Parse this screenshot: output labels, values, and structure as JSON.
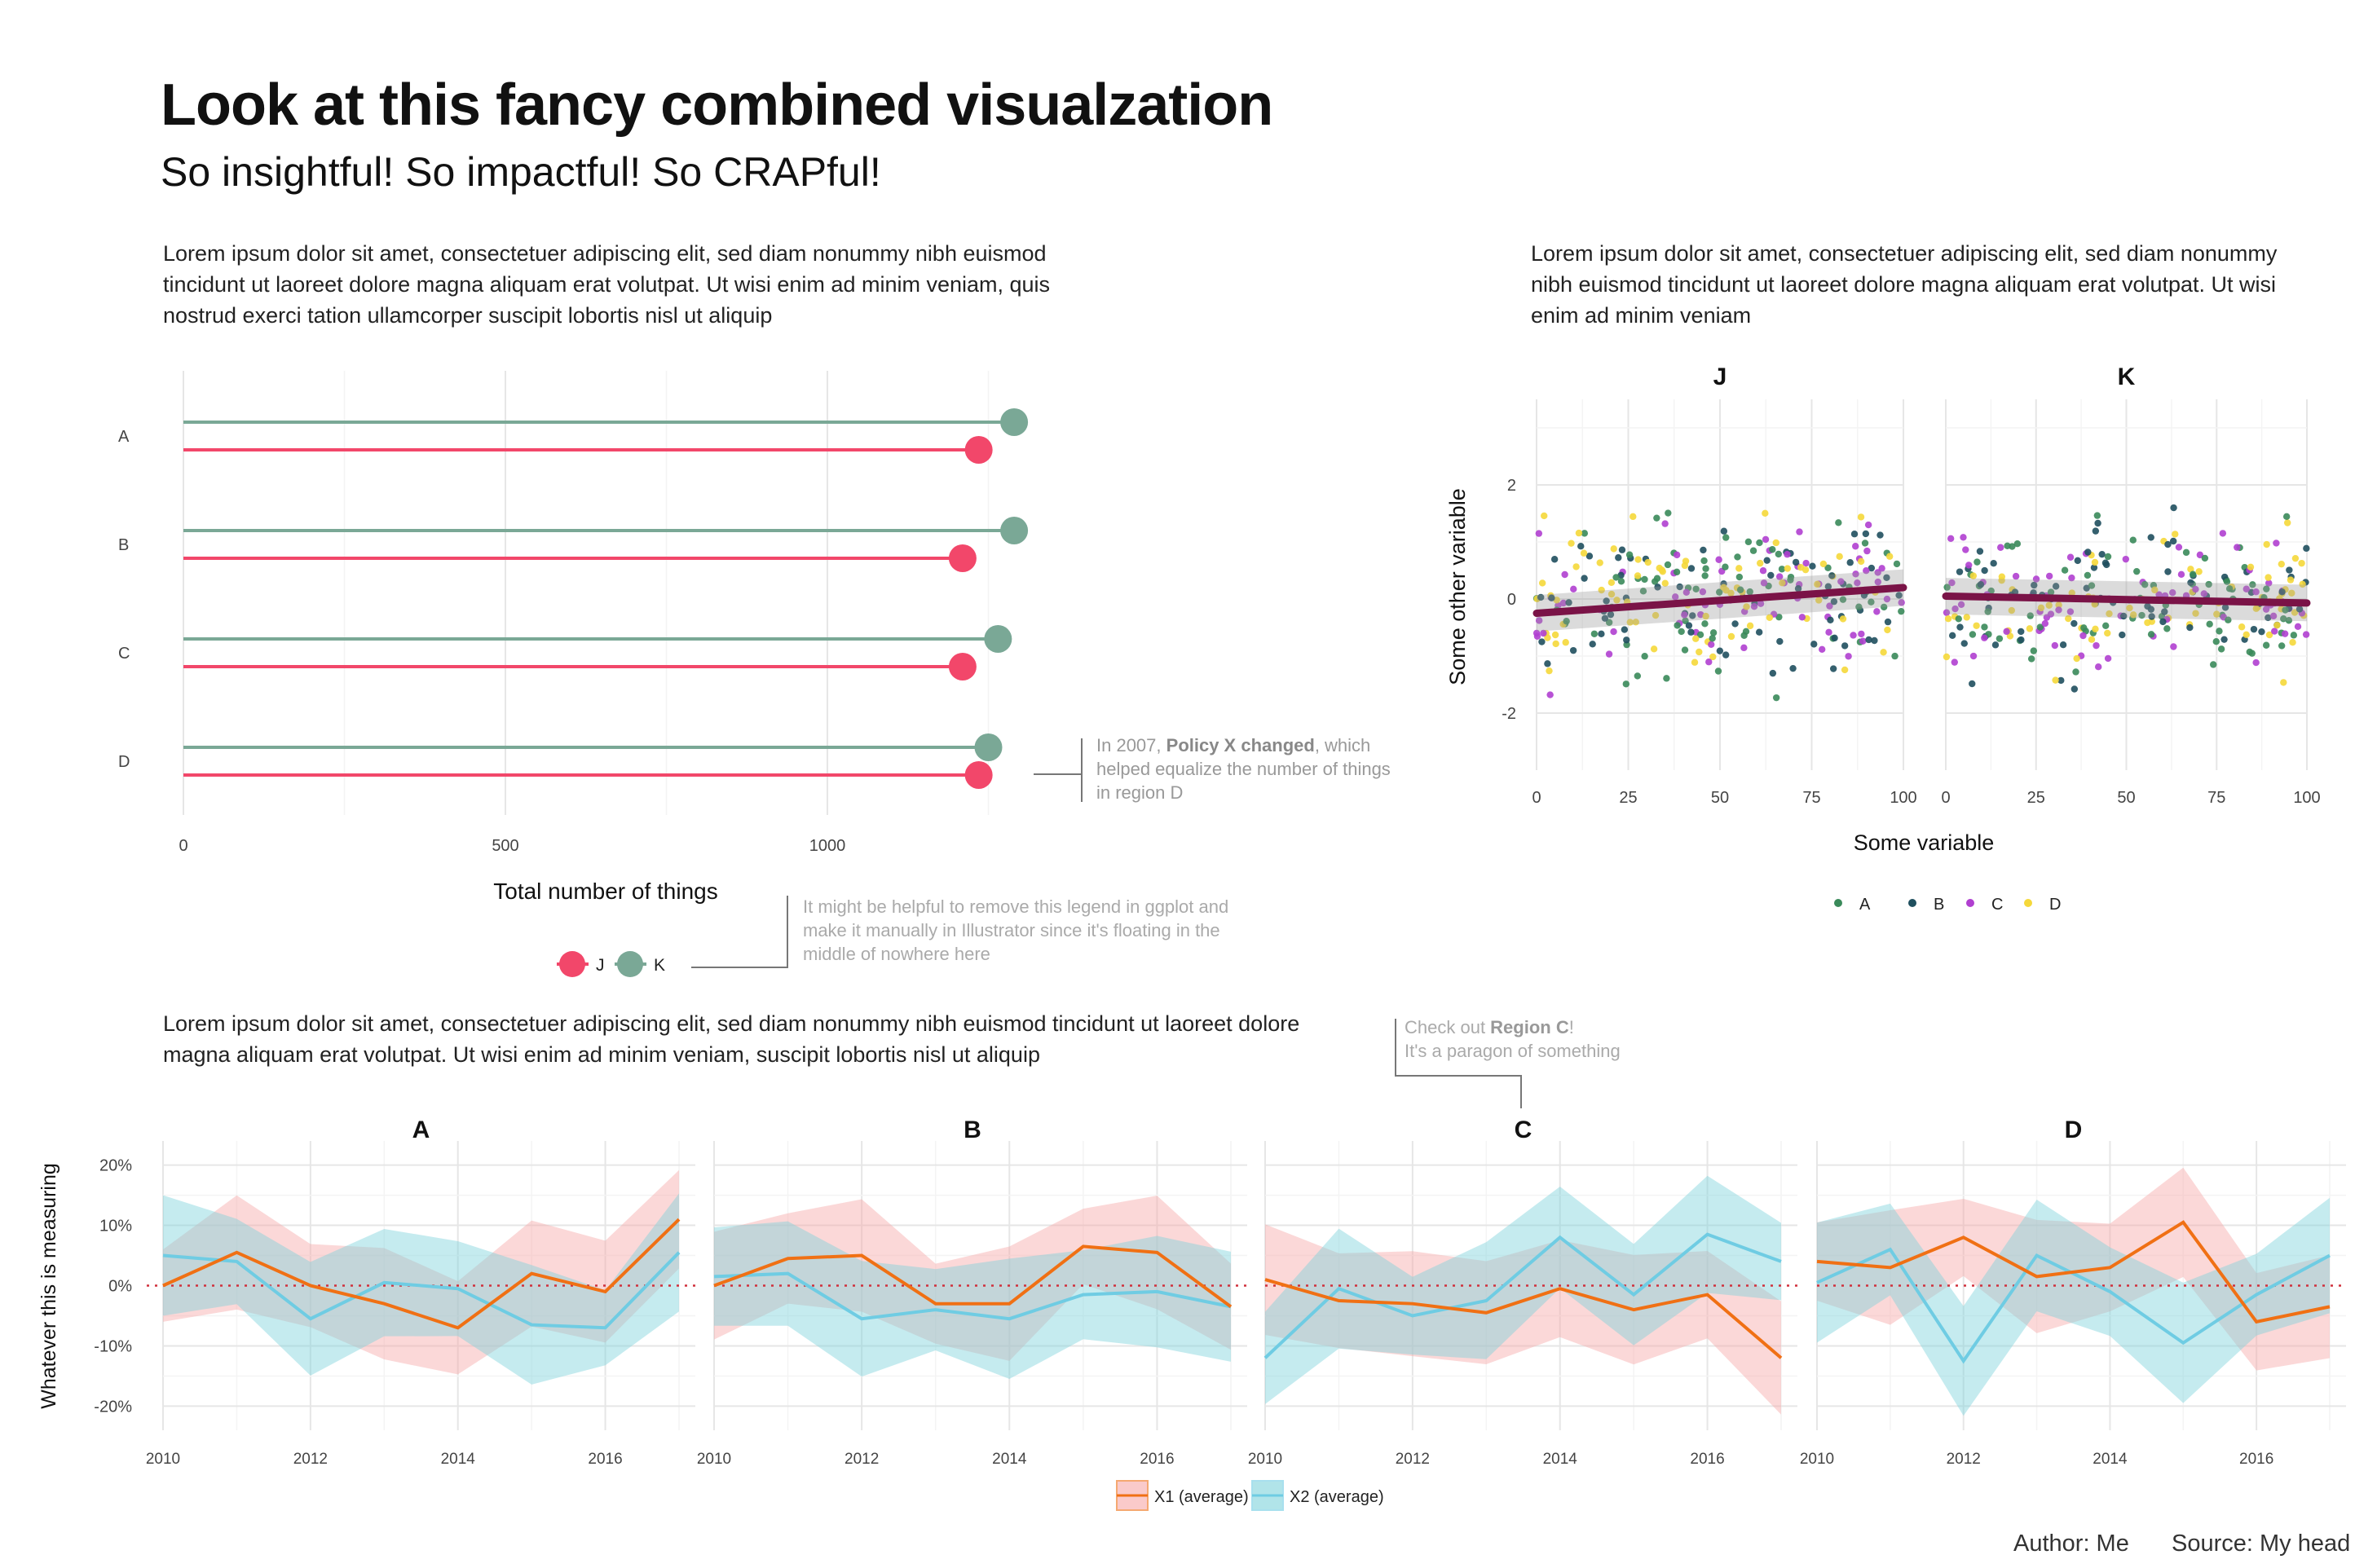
{
  "header": {
    "title": "Look at this fancy combined visualzation",
    "subtitle": "So insightful! So impactful! So CRAPful!"
  },
  "paragraphs": {
    "p1": "Lorem ipsum dolor sit amet, consectetuer adipiscing elit, sed diam nonummy nibh euismod tincidunt ut laoreet dolore magna aliquam erat volutpat. Ut wisi enim ad minim veniam, quis nostrud exerci tation ullamcorper suscipit lobortis nisl ut aliquip",
    "p2": "Lorem ipsum dolor sit amet, consectetuer adipiscing elit, sed diam nonummy nibh euismod tincidunt ut laoreet dolore magna aliquam erat volutpat. Ut wisi enim ad minim veniam",
    "p3": "Lorem ipsum dolor sit amet, consectetuer adipiscing elit, sed diam nonummy nibh euismod tincidunt ut laoreet dolore magna aliquam erat volutpat. Ut wisi enim ad minim veniam, suscipit lobortis nisl ut aliquip"
  },
  "annotations": {
    "policy": [
      "In 2007, ",
      "Policy X changed",
      ", which",
      "helped equalize the number of things",
      "in region D"
    ],
    "legend_note": [
      "It might be helpful to remove this legend in ggplot and",
      "make it manually in Illustrator since it's floating in the",
      "middle of nowhere here"
    ],
    "region_c": [
      "Check out ",
      "Region C",
      "!",
      "It's a paragon of something"
    ]
  },
  "footer": {
    "author": "Author: Me",
    "source": "Source: My head"
  },
  "colors": {
    "J": "#f2476a",
    "K": "#7aa896",
    "X1": "#f07014",
    "X2": "#6fcce3",
    "trend": "#7a1347"
  },
  "chart_data": [
    {
      "type": "lollipop",
      "categories": [
        "A",
        "B",
        "C",
        "D"
      ],
      "series": [
        {
          "name": "K",
          "values": [
            1290,
            1290,
            1265,
            1250
          ]
        },
        {
          "name": "J",
          "values": [
            1235,
            1210,
            1210,
            1235
          ]
        }
      ],
      "xlabel": "Total number of things",
      "xlim": [
        0,
        1300
      ],
      "xticks": [
        "0",
        "500",
        "1000"
      ],
      "legend": [
        "J",
        "K"
      ]
    },
    {
      "type": "scatter",
      "panels": [
        "J",
        "K"
      ],
      "xlabel": "Some variable",
      "ylabel": "Some other variable",
      "xlim": [
        0,
        100
      ],
      "ylim": [
        -3,
        3.5
      ],
      "xticks": [
        "0",
        "25",
        "50",
        "75",
        "100"
      ],
      "yticks": [
        "2",
        "0",
        "-2"
      ],
      "legend": [
        "A",
        "B",
        "C",
        "D"
      ],
      "group_colors": [
        "#3a8a5a",
        "#1f4f5e",
        "#b03fd0",
        "#f5d83a"
      ],
      "trend": {
        "J": [
          -0.25,
          0.2
        ],
        "K": [
          0.05,
          -0.07
        ]
      }
    },
    {
      "type": "line",
      "panels": [
        "A",
        "B",
        "C",
        "D"
      ],
      "x": [
        2010,
        2011,
        2012,
        2013,
        2014,
        2015,
        2016,
        2017
      ],
      "xticks": [
        "2010",
        "2012",
        "2014",
        "2016"
      ],
      "ylabel": "Whatever this is measuring",
      "ylim": [
        -0.24,
        0.24
      ],
      "yticks": [
        "20%",
        "10%",
        "0%",
        "-10%",
        "-20%"
      ],
      "legend": [
        "X1 (average)",
        "X2 (average)"
      ],
      "series": {
        "A": {
          "X1": [
            0.0,
            0.055,
            0.0,
            -0.03,
            -0.07,
            0.02,
            -0.01,
            0.11
          ],
          "X2": [
            0.05,
            0.04,
            -0.055,
            0.005,
            -0.005,
            -0.065,
            -0.07,
            0.055
          ]
        },
        "B": {
          "X1": [
            0.0,
            0.045,
            0.05,
            -0.03,
            -0.03,
            0.065,
            0.055,
            -0.035
          ],
          "X2": [
            0.015,
            0.02,
            -0.055,
            -0.04,
            -0.055,
            -0.015,
            -0.01,
            -0.035
          ]
        },
        "C": {
          "X1": [
            0.01,
            -0.025,
            -0.03,
            -0.045,
            -0.005,
            -0.04,
            -0.015,
            -0.12
          ],
          "X2": [
            -0.12,
            -0.005,
            -0.05,
            -0.025,
            0.08,
            -0.015,
            0.085,
            0.04
          ]
        },
        "D": {
          "X1": [
            0.04,
            0.03,
            0.08,
            0.015,
            0.03,
            0.105,
            -0.06,
            -0.035
          ],
          "X2": [
            0.005,
            0.06,
            -0.125,
            0.05,
            -0.01,
            -0.095,
            -0.015,
            0.05
          ]
        }
      }
    }
  ]
}
